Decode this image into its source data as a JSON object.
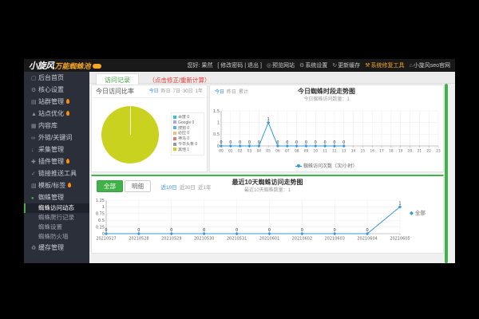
{
  "topbar": {
    "logo": {
      "main": "小旋风",
      "sub": "万能蜘蛛池"
    },
    "greeting": "您好: 果然",
    "account_links": "[ 修改密码 | 退出 ]",
    "menu": [
      {
        "icon": "preview-icon",
        "label": "预览网站"
      },
      {
        "icon": "gear-icon",
        "label": "系统设置"
      },
      {
        "icon": "refresh-icon",
        "label": "更新缓存"
      },
      {
        "icon": "wrench-icon",
        "label": "系统修复工具"
      },
      {
        "icon": "home-icon",
        "label": "小旋风seo官网"
      }
    ]
  },
  "sidebar": {
    "items": [
      {
        "name": "home",
        "icon": "monitor",
        "label": "后台首页"
      },
      {
        "name": "core-settings",
        "icon": "gear",
        "label": "核心设置"
      },
      {
        "name": "site-group",
        "icon": "sites",
        "label": "站群管理",
        "hot": true
      },
      {
        "name": "site-optimize",
        "icon": "rocket",
        "label": "站点优化",
        "hot": true
      },
      {
        "name": "content-library",
        "icon": "database",
        "label": "内容库"
      },
      {
        "name": "links-keywords",
        "icon": "link",
        "label": "外链/关键词"
      },
      {
        "name": "collect",
        "icon": "download",
        "label": "采集管理"
      },
      {
        "name": "plugins",
        "icon": "plus",
        "label": "插件管理",
        "hot": true
      },
      {
        "name": "link-push",
        "icon": "check",
        "label": "链接推送工具"
      },
      {
        "name": "templates",
        "icon": "grid",
        "label": "模板/标签",
        "hot": true
      },
      {
        "name": "spider",
        "icon": "dot",
        "label": "蜘蛛管理",
        "active": true,
        "children": [
          {
            "name": "spider-visits",
            "label": "蜘蛛访问动态",
            "selected": true
          },
          {
            "name": "spider-crawl-log",
            "label": "蜘蛛爬行记录"
          },
          {
            "name": "spider-settings",
            "label": "蜘蛛设置"
          },
          {
            "name": "spider-firewall",
            "label": "蜘蛛防火墙"
          }
        ]
      },
      {
        "name": "cache",
        "icon": "recycle",
        "label": "缓存管理"
      }
    ]
  },
  "tabs": {
    "active_tab": "访问记录",
    "note": "（点击修正/重新计算）"
  },
  "panels": {
    "pie": {
      "title": "今日访问比率",
      "ranges": [
        "今日",
        "昨日",
        "7日",
        "30日",
        "1年"
      ],
      "active_range": "今日"
    },
    "hourly": {
      "ranges": [
        "今日",
        "昨日",
        "累计"
      ],
      "active_range": "今日"
    },
    "daily": {
      "buttons": [
        "全部",
        "明细"
      ],
      "active_button": "全部",
      "ranges": [
        "近10日",
        "近30日",
        "近1年"
      ],
      "active_range": "近10日"
    }
  },
  "colors": {
    "accent_green": "#43b149",
    "link_blue": "#2d8cf0",
    "danger_red": "#e53935",
    "chart_blue": "#3398db",
    "pie_yellow": "#c9d21f",
    "hot_orange": "#ff8f00",
    "logo_yellow": "#f5a623"
  },
  "chart_data": [
    {
      "type": "pie",
      "title": "今日访问比率",
      "legend_position": "right",
      "slices": [
        {
          "label": "百度",
          "value": 0,
          "color": "#2ec7c9"
        },
        {
          "label": "Google",
          "value": 0,
          "color": "#b6a2de"
        },
        {
          "label": "搜狗",
          "value": 0,
          "color": "#5ab1ef"
        },
        {
          "label": "必应",
          "value": 0,
          "color": "#ffb980"
        },
        {
          "label": "神马",
          "value": 0,
          "color": "#d87a80"
        },
        {
          "label": "今日头条",
          "value": 0,
          "color": "#8d98b3"
        },
        {
          "label": "其他",
          "value": 1,
          "color": "#c9d21f"
        }
      ]
    },
    {
      "type": "line",
      "title": "今日蜘蛛时段走势图",
      "subtitle": "今日蜘蛛访问数量：1",
      "series_name": "蜘蛛访问次数（次/小时）",
      "color": "#3398db",
      "x": [
        "00",
        "01",
        "02",
        "03",
        "04",
        "05",
        "06",
        "07",
        "08",
        "09",
        "10",
        "11",
        "12",
        "13",
        "14",
        "15",
        "16",
        "17",
        "18",
        "19",
        "20",
        "21",
        "22",
        "23"
      ],
      "values": [
        0,
        0,
        0,
        0,
        0,
        1,
        0,
        0,
        0,
        0,
        0,
        0,
        0,
        0,
        null,
        null,
        null,
        null,
        null,
        null,
        null,
        null,
        null,
        null
      ],
      "ylim": [
        0,
        1.5
      ],
      "yticks": [
        0,
        0.5,
        1,
        1.5
      ],
      "grid": true,
      "legend_position": "bottom"
    },
    {
      "type": "line",
      "title": "最近10天蜘蛛访问走势图",
      "subtitle": "最近10天蜘蛛数量：1",
      "series_name": "全部",
      "color": "#3398db",
      "x": [
        "20210527",
        "20210528",
        "20210529",
        "20210530",
        "20210531",
        "20210601",
        "20210602",
        "20210603",
        "20210604",
        "20210605"
      ],
      "values": [
        0,
        0,
        0,
        0,
        0,
        0,
        0,
        0,
        0,
        1
      ],
      "ylim": [
        0,
        1.25
      ],
      "yticks": [
        0,
        0.25,
        0.5,
        0.75,
        1,
        1.25
      ],
      "grid": true,
      "legend_position": "right"
    }
  ]
}
